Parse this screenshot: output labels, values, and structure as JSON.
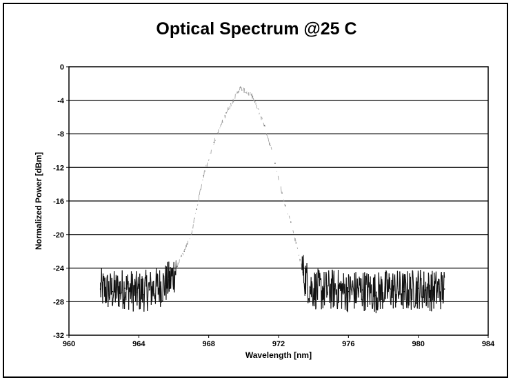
{
  "chart_data": {
    "type": "line",
    "title": "Optical Spectrum @25 C",
    "xlabel": "Wavelength [nm]",
    "ylabel": "Normalized Power [dBm]",
    "xlim": [
      960,
      984
    ],
    "ylim": [
      -32,
      0
    ],
    "x_ticks": [
      "960",
      "964",
      "968",
      "972",
      "976",
      "980",
      "984"
    ],
    "y_ticks": [
      "0",
      "-4",
      "-8",
      "-12",
      "-16",
      "-20",
      "-24",
      "-28",
      "-32"
    ],
    "grid": "horizontal",
    "series": [
      {
        "x": [
          961.8,
          962.5,
          963.2,
          963.9,
          964.6,
          965.2,
          965.8,
          966.2,
          966.6,
          967.0,
          967.3,
          967.7,
          968.3,
          969.0,
          969.8,
          970.5,
          971.2,
          971.8,
          972.3,
          972.7,
          973.0,
          973.4,
          973.8,
          974.5,
          975.2,
          976.0,
          976.8,
          977.6,
          978.4,
          979.2,
          980.0,
          980.8,
          981.5
        ],
        "y": [
          -26.5,
          -26.8,
          -26.4,
          -26.9,
          -26.6,
          -26.2,
          -25.5,
          -23.8,
          -22.0,
          -20.0,
          -17.0,
          -13.0,
          -9.0,
          -5.5,
          -2.5,
          -3.5,
          -7.0,
          -11.5,
          -16.0,
          -18.5,
          -21.0,
          -24.5,
          -26.3,
          -26.7,
          -26.5,
          -26.8,
          -26.6,
          -26.9,
          -26.5,
          -26.8,
          -26.4,
          -26.7,
          -26.5
        ]
      }
    ]
  }
}
